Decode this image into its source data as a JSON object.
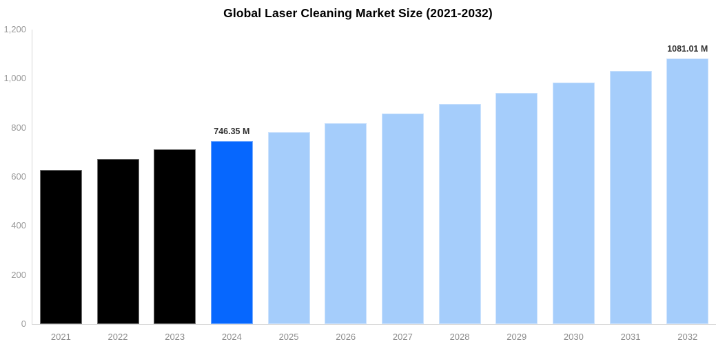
{
  "title": "Global Laser Cleaning Market Size (2021-2032)",
  "colors": {
    "historical_bar": "#000000",
    "highlight_bar": "#0667FE",
    "forecast_bar": "#A5CDFB",
    "axis_line": "#d6d6d6",
    "y_tick_label": "#999999",
    "x_tick_label": "#8c8c8c",
    "value_label": "#333333",
    "background": "#ffffff",
    "title_text": "#000000"
  },
  "chart_data": {
    "type": "bar",
    "title": "Global Laser Cleaning Market Size (2021-2032)",
    "xlabel": "",
    "ylabel": "",
    "categories": [
      "2021",
      "2022",
      "2023",
      "2024",
      "2025",
      "2026",
      "2027",
      "2028",
      "2029",
      "2030",
      "2031",
      "2032"
    ],
    "values": [
      627,
      674,
      712,
      746.35,
      781.7,
      818.8,
      857.6,
      898.3,
      940.9,
      985.5,
      1032.2,
      1081.01
    ],
    "bar_roles": [
      "historical",
      "historical",
      "historical",
      "highlight",
      "forecast",
      "forecast",
      "forecast",
      "forecast",
      "forecast",
      "forecast",
      "forecast",
      "forecast"
    ],
    "value_labels": [
      "",
      "",
      "",
      "746.35 M",
      "",
      "",
      "",
      "",
      "",
      "",
      "",
      "1081.01 M"
    ],
    "unit": "M",
    "ylim": [
      0,
      1200
    ],
    "ytick_values": [
      0,
      200,
      400,
      600,
      800,
      1000,
      1200
    ],
    "ytick_labels": [
      "0",
      "200",
      "400",
      "600",
      "800",
      "1,000",
      "1,200"
    ],
    "grid": false,
    "legend": false,
    "plot_background": "white"
  }
}
